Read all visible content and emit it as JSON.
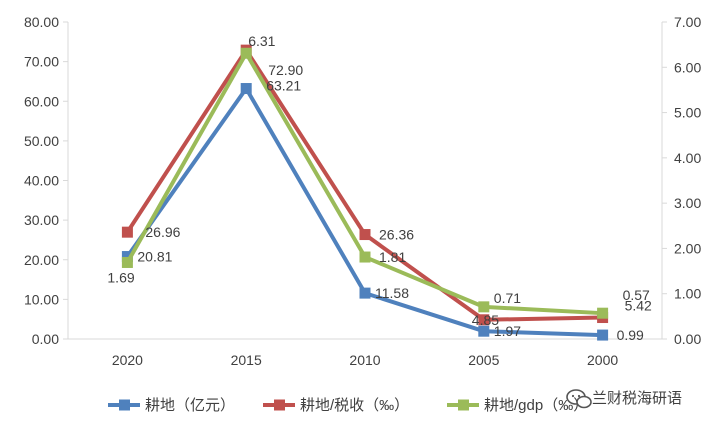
{
  "chart_data": {
    "type": "line",
    "categories": [
      "2020",
      "2015",
      "2010",
      "2005",
      "2000"
    ],
    "y_left_ticks": [
      "0.00",
      "10.00",
      "20.00",
      "30.00",
      "40.00",
      "50.00",
      "60.00",
      "70.00",
      "80.00"
    ],
    "y_right_ticks": [
      "0.00",
      "1.00",
      "2.00",
      "3.00",
      "4.00",
      "5.00",
      "6.00",
      "7.00"
    ],
    "ylim_left": [
      0,
      80
    ],
    "ylim_right": [
      0,
      7
    ],
    "grid": false,
    "legend_position": "bottom",
    "series": [
      {
        "name": "耕地（亿元）",
        "axis": "left",
        "color": "#4F81BD",
        "values": [
          20.81,
          63.21,
          11.58,
          1.97,
          0.99
        ],
        "labels": [
          "20.81",
          "63.21",
          "11.58",
          "1.97",
          "0.99"
        ]
      },
      {
        "name": "耕地/税收（‰）",
        "axis": "left",
        "color": "#C0504D",
        "values": [
          26.96,
          72.9,
          26.36,
          4.85,
          5.42
        ],
        "labels": [
          "26.96",
          "72.90",
          "26.36",
          "4.85",
          "5.42"
        ]
      },
      {
        "name": "耕地/gdp（‰）",
        "axis": "right",
        "color": "#9BBB59",
        "values": [
          1.69,
          6.31,
          1.81,
          0.71,
          0.57
        ],
        "labels": [
          "1.69",
          "6.31",
          "1.81",
          "0.71",
          "0.57"
        ]
      }
    ]
  },
  "watermark": {
    "text": "兰财税海研语",
    "icon": "wechat-icon"
  }
}
